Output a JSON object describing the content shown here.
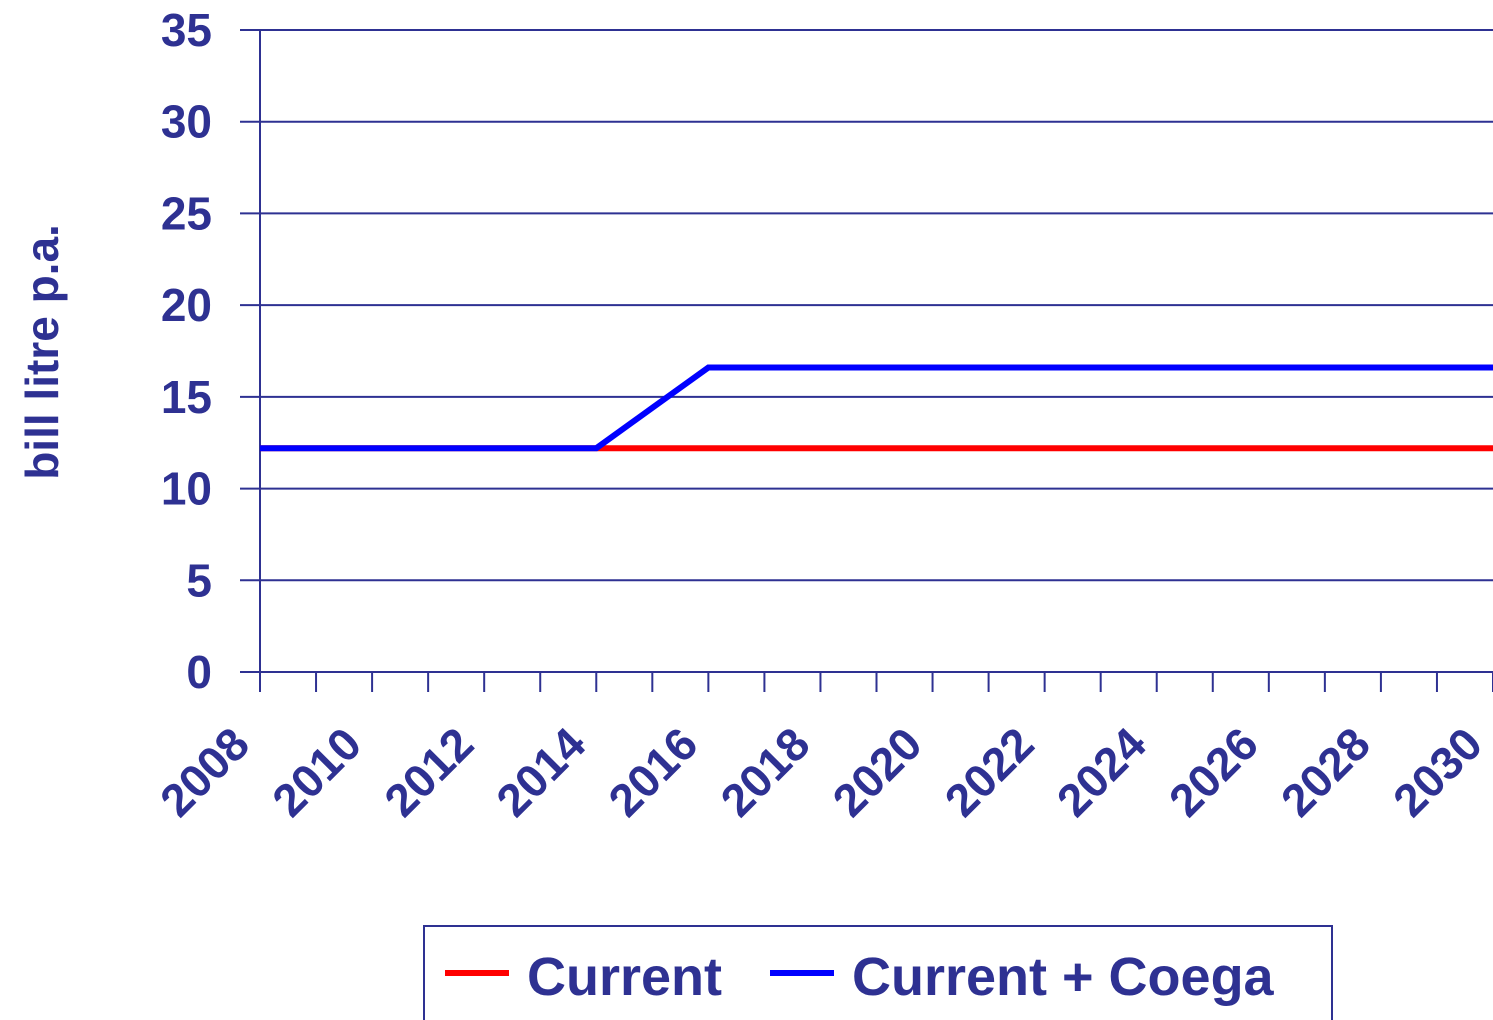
{
  "chart_data": {
    "type": "line",
    "y_label": "bill litre p.a.",
    "x": [
      2008,
      2009,
      2010,
      2011,
      2012,
      2013,
      2014,
      2015,
      2016,
      2017,
      2018,
      2019,
      2020,
      2021,
      2022,
      2023,
      2024,
      2025,
      2026,
      2027,
      2028,
      2029,
      2030
    ],
    "series": [
      {
        "name": "Current",
        "color": "#FF0000",
        "values": [
          12.2,
          12.2,
          12.2,
          12.2,
          12.2,
          12.2,
          12.2,
          12.2,
          12.2,
          12.2,
          12.2,
          12.2,
          12.2,
          12.2,
          12.2,
          12.2,
          12.2,
          12.2,
          12.2,
          12.2,
          12.2,
          12.2,
          12.2
        ]
      },
      {
        "name": "Current + Coega",
        "color": "#0000FF",
        "values": [
          12.2,
          12.2,
          12.2,
          12.2,
          12.2,
          12.2,
          12.2,
          14.4,
          16.6,
          16.6,
          16.6,
          16.6,
          16.6,
          16.6,
          16.6,
          16.6,
          16.6,
          16.6,
          16.6,
          16.6,
          16.6,
          16.6,
          16.6
        ]
      }
    ],
    "xlim": [
      2008,
      2030
    ],
    "xticks": [
      2008,
      2010,
      2012,
      2014,
      2016,
      2018,
      2020,
      2022,
      2024,
      2026,
      2028,
      2030
    ],
    "xminorticks": [
      2009,
      2011,
      2013,
      2015,
      2017,
      2019,
      2021,
      2023,
      2025,
      2027,
      2029
    ],
    "ylim": [
      0,
      35
    ],
    "yticks": [
      0,
      5,
      10,
      15,
      20,
      25,
      30,
      35
    ],
    "grid": true,
    "legend": "bottom"
  }
}
